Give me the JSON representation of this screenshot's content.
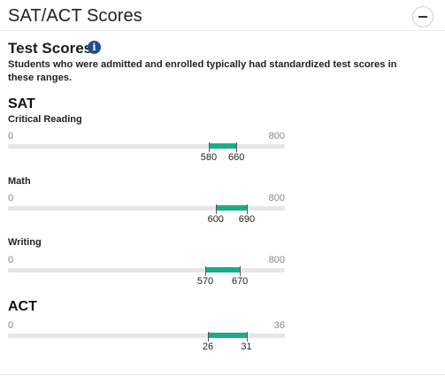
{
  "page": {
    "title": "SAT/ACT Scores",
    "collapse_icon": "minus-icon"
  },
  "test_scores": {
    "title": "Test Scores",
    "info_icon": "i",
    "description": "Students who were admitted and enrolled typically had standardized test scores in these ranges."
  },
  "sat": {
    "title": "SAT",
    "ranges": [
      {
        "label": "Critical Reading",
        "min": "0",
        "max": "800",
        "low": "580",
        "high": "660",
        "low_value": 580,
        "high_value": 660,
        "scale_max": 800
      },
      {
        "label": "Math",
        "min": "0",
        "max": "800",
        "low": "600",
        "high": "690",
        "low_value": 600,
        "high_value": 690,
        "scale_max": 800
      },
      {
        "label": "Writing",
        "min": "0",
        "max": "800",
        "low": "570",
        "high": "670",
        "low_value": 570,
        "high_value": 670,
        "scale_max": 800
      }
    ]
  },
  "act": {
    "title": "ACT",
    "range": {
      "min": "0",
      "max": "36",
      "low": "26",
      "high": "31",
      "low_value": 26,
      "high_value": 31,
      "scale_max": 36
    }
  },
  "colors": {
    "range_fill": "#1aab8b",
    "track": "#e6e6e6",
    "info_icon_bg": "#1f4e8c"
  }
}
